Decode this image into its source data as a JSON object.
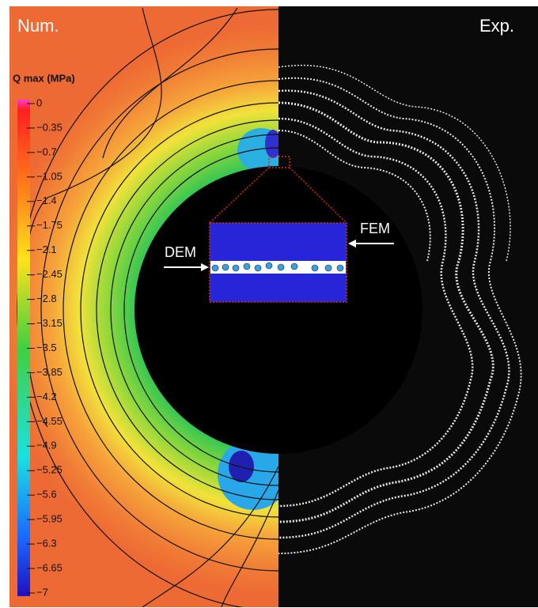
{
  "labels": {
    "left": "Num.",
    "right": "Exp."
  },
  "colorbar": {
    "title": "Q max (MPa)",
    "ticks": [
      "0",
      "−0.35",
      "−0.7",
      "−1.05",
      "−1.4",
      "−1.75",
      "−2.1",
      "−2.45",
      "−2.8",
      "−3.15",
      "−3.5",
      "−3.85",
      "−4.2",
      "−4.55",
      "−4.9",
      "−5.25",
      "−5.6",
      "−5.95",
      "−6.3",
      "−6.65",
      "−7"
    ]
  },
  "inset": {
    "left_arrow": "DEM",
    "right_arrow": "FEM"
  }
}
